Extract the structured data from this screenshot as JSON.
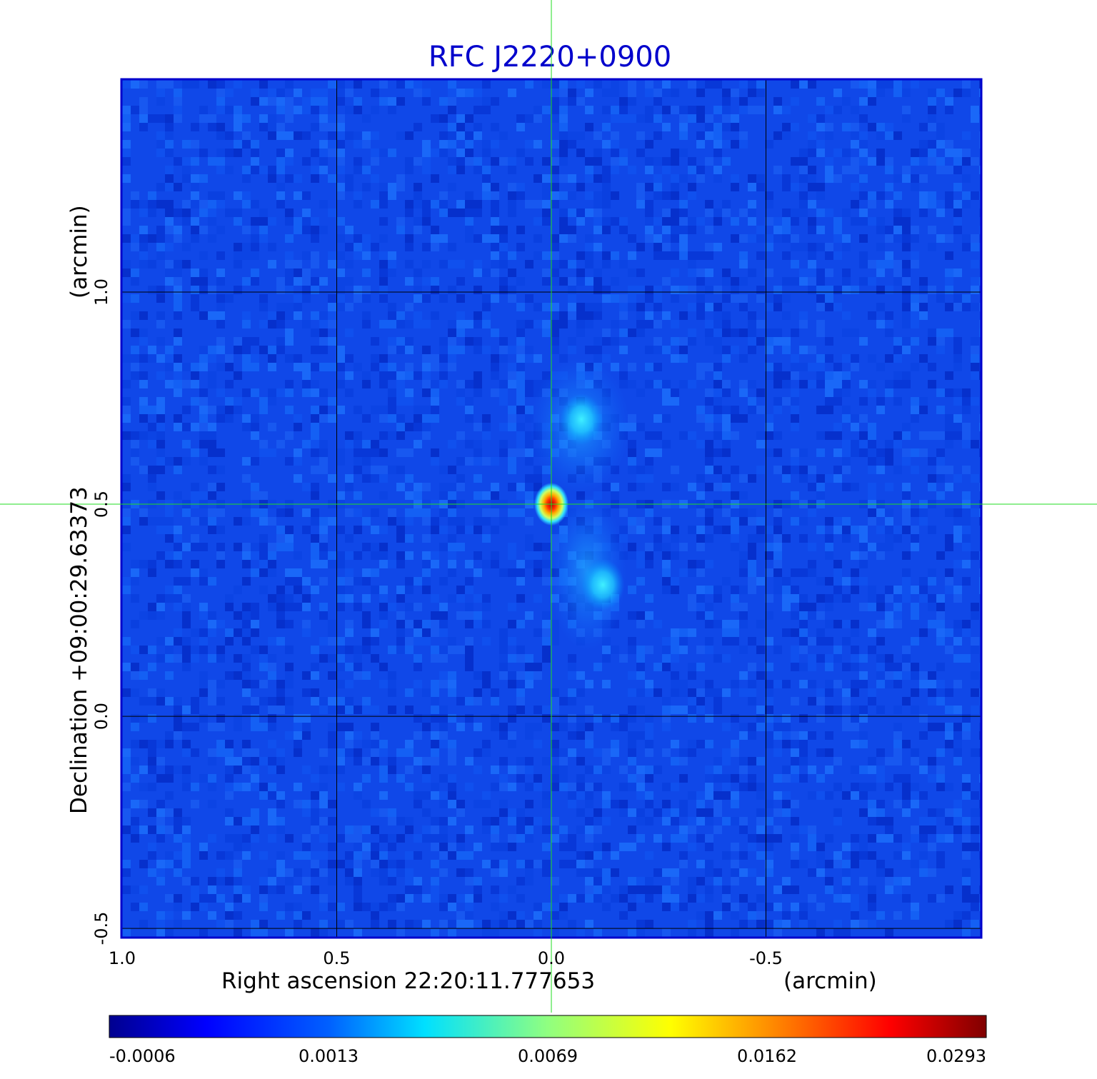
{
  "chart_data": {
    "type": "heatmap",
    "title": "RFC J2220+0900",
    "xlabel": "Right ascension  22:20:11.777653",
    "xunit": "(arcmin)",
    "ylabel": "Declination  +09:00:29.63373",
    "yunit": "(arcmin)",
    "xlim": [
      1.0,
      -1.0
    ],
    "ylim": [
      -0.52,
      1.5
    ],
    "x_ticks": [
      {
        "value": 1.0,
        "label": "1.0"
      },
      {
        "value": 0.5,
        "label": "0.5"
      },
      {
        "value": 0.0,
        "label": "0.0"
      },
      {
        "value": -0.5,
        "label": "-0.5"
      }
    ],
    "y_ticks": [
      {
        "value": -0.5,
        "label": "-0.5"
      },
      {
        "value": 0.0,
        "label": "0.0"
      },
      {
        "value": 0.5,
        "label": "0.5"
      },
      {
        "value": 1.0,
        "label": "1.0"
      }
    ],
    "grid": true,
    "crosshair": {
      "x": 0.0,
      "y": 0.5,
      "color": "#22dd22"
    },
    "colormap": "jet",
    "colorbar": {
      "position": "bottom",
      "tick_labels": [
        "-0.0006",
        "0.0013",
        "0.0069",
        "0.0162",
        "0.0293"
      ],
      "min": -0.0006,
      "max": 0.0293
    },
    "background_level": 0.0,
    "features": [
      {
        "kind": "core",
        "x": 0.0,
        "y": 0.5,
        "peak": 0.0293
      },
      {
        "kind": "jet-blob",
        "x": -0.07,
        "y": 0.7,
        "peak": 0.0015
      },
      {
        "kind": "jet-blob",
        "x": -0.12,
        "y": 0.31,
        "peak": 0.0019
      }
    ]
  },
  "colors": {
    "title": "#0000cc",
    "frame": "#0000cc",
    "grid": "#000000",
    "crosshair": "#22dd22"
  }
}
